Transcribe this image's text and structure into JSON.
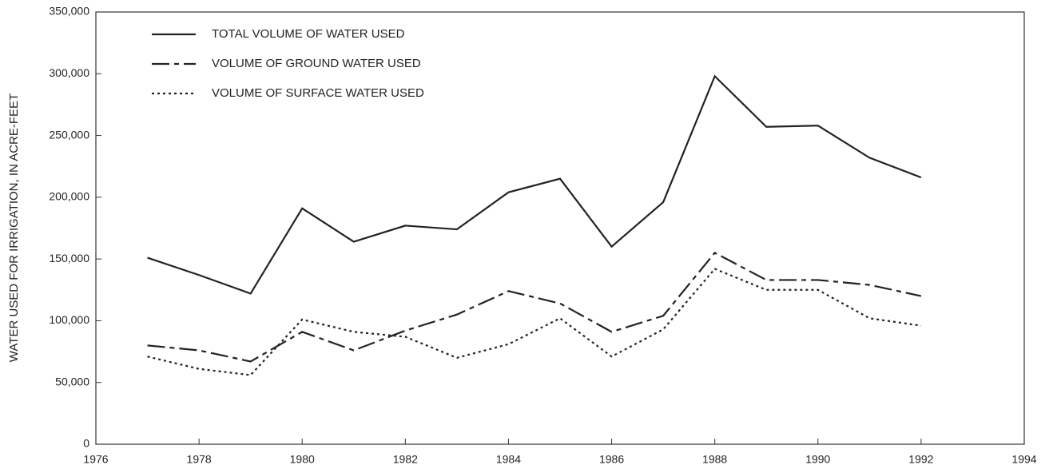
{
  "chart_data": {
    "type": "line",
    "y_label": "WATER USED FOR IRRIGATION,  IN ACRE-FEET",
    "x": [
      1977,
      1978,
      1979,
      1980,
      1981,
      1982,
      1983,
      1984,
      1985,
      1986,
      1987,
      1988,
      1989,
      1990,
      1991,
      1992
    ],
    "series": [
      {
        "name": "TOTAL VOLUME OF WATER USED",
        "color": "#222222",
        "style": "solid",
        "values": [
          151000,
          137000,
          122000,
          191000,
          164000,
          177000,
          174000,
          204000,
          215000,
          160000,
          196000,
          298000,
          257000,
          258000,
          232000,
          216000
        ]
      },
      {
        "name": "VOLUME OF GROUND WATER USED",
        "color": "#222222",
        "style": "dashed",
        "values": [
          80000,
          76000,
          67000,
          91000,
          76000,
          92000,
          105000,
          124000,
          114000,
          91000,
          104000,
          155000,
          133000,
          133000,
          129000,
          120000
        ]
      },
      {
        "name": "VOLUME OF SURFACE WATER USED",
        "color": "#222222",
        "style": "dotted",
        "values": [
          71000,
          61000,
          56000,
          101000,
          91000,
          87000,
          70000,
          81000,
          102000,
          71000,
          93000,
          142000,
          125000,
          125000,
          102000,
          96000
        ]
      }
    ],
    "xlim": [
      1976,
      1994
    ],
    "xticks": [
      1976,
      1978,
      1980,
      1982,
      1984,
      1986,
      1988,
      1990,
      1992,
      1994
    ],
    "ylim": [
      0,
      350000
    ],
    "yticks": [
      0,
      {
        "value": 50000,
        "label": "50,000"
      },
      {
        "value": 100000,
        "label": "100,000"
      },
      {
        "value": 150000,
        "label": "150,000"
      },
      {
        "value": 200000,
        "label": "200,000"
      },
      {
        "value": 250000,
        "label": "250,000"
      },
      {
        "value": 300000,
        "label": "300,000"
      },
      {
        "value": 350000,
        "label": "350,000"
      }
    ],
    "legend": "upper-left"
  }
}
